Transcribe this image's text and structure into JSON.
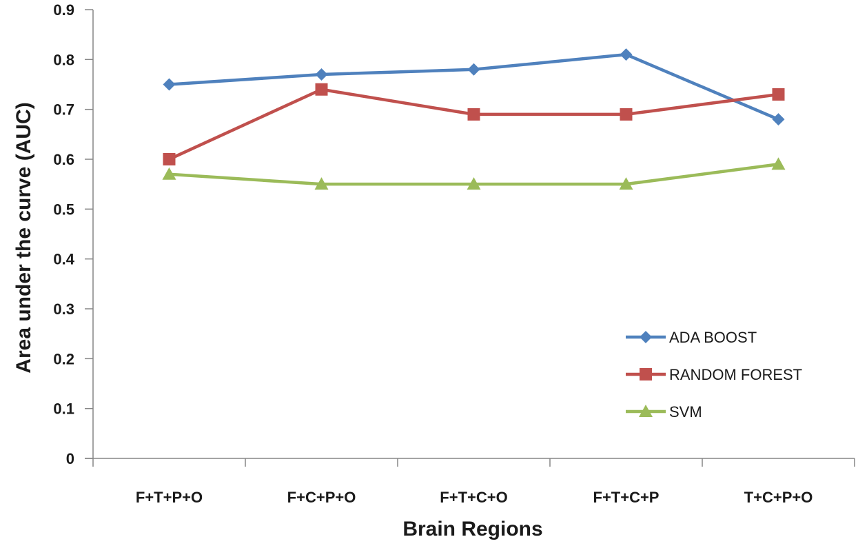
{
  "chart_data": {
    "type": "line",
    "title": "",
    "xlabel": "Brain Regions",
    "ylabel": "Area under  the curve (AUC)",
    "categories": [
      "F+T+P+O",
      "F+C+P+O",
      "F+T+C+O",
      "F+T+C+P",
      "T+C+P+O"
    ],
    "ylim": [
      0,
      0.9
    ],
    "yticks": [
      "0",
      "0.1",
      "0.2",
      "0.3",
      "0.4",
      "0.5",
      "0.6",
      "0.7",
      "0.8",
      "0.9"
    ],
    "grid": false,
    "legend_position": "bottom-right",
    "series": [
      {
        "name": "ADA BOOST",
        "color": "#4F81BD",
        "marker": "diamond",
        "values": [
          0.75,
          0.77,
          0.78,
          0.81,
          0.68
        ]
      },
      {
        "name": "RANDOM FOREST",
        "color": "#C0504D",
        "marker": "square",
        "values": [
          0.6,
          0.74,
          0.69,
          0.69,
          0.73
        ]
      },
      {
        "name": "SVM",
        "color": "#9BBB59",
        "marker": "triangle",
        "values": [
          0.57,
          0.55,
          0.55,
          0.55,
          0.59
        ]
      }
    ]
  }
}
